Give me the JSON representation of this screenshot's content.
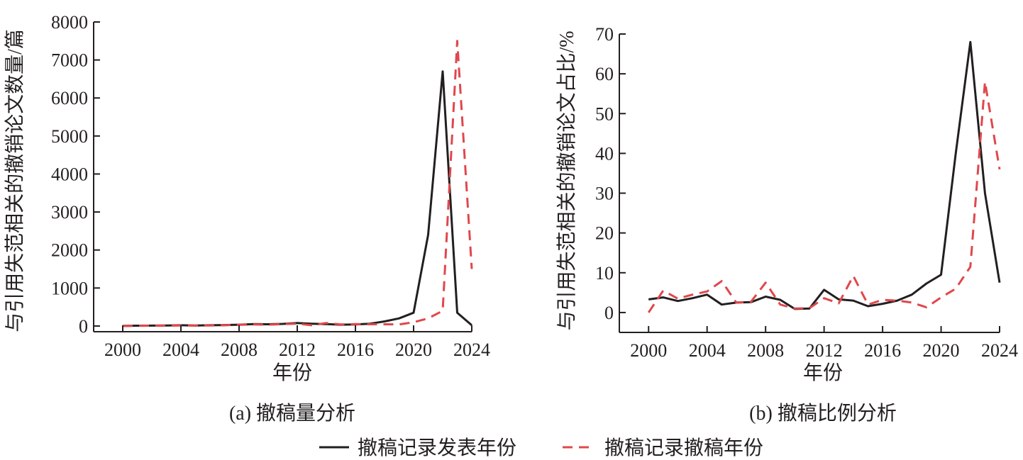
{
  "chart_data": [
    {
      "type": "line",
      "caption": "(a) 撤稿量分析",
      "xlabel": "年份",
      "ylabel": "与引用失范相关的撤销论文数量/篇",
      "xlim": [
        1998,
        2024
      ],
      "ylim": [
        -150,
        8000
      ],
      "xticks": [
        2000,
        2004,
        2008,
        2012,
        2016,
        2020,
        2024
      ],
      "yticks": [
        0,
        1000,
        2000,
        3000,
        4000,
        5000,
        6000,
        7000,
        8000
      ],
      "x": [
        2000,
        2001,
        2002,
        2003,
        2004,
        2005,
        2006,
        2007,
        2008,
        2009,
        2010,
        2011,
        2012,
        2013,
        2014,
        2015,
        2016,
        2017,
        2018,
        2019,
        2020,
        2021,
        2022,
        2023,
        2024
      ],
      "series": [
        {
          "name": "撤稿记录发表年份",
          "color": "#231f20",
          "dash": "solid",
          "x": [
            2000,
            2001,
            2002,
            2003,
            2004,
            2005,
            2006,
            2007,
            2008,
            2009,
            2010,
            2011,
            2012,
            2013,
            2014,
            2015,
            2016,
            2017,
            2018,
            2019,
            2020,
            2021,
            2022,
            2023,
            2024
          ],
          "values": [
            5,
            8,
            10,
            15,
            20,
            15,
            20,
            25,
            35,
            50,
            45,
            55,
            80,
            60,
            50,
            35,
            40,
            60,
            120,
            200,
            350,
            2400,
            6700,
            350,
            20
          ]
        },
        {
          "name": "撤稿记录撤稿年份",
          "color": "#e0474c",
          "dash": "dashed",
          "x": [
            2000,
            2001,
            2002,
            2003,
            2004,
            2005,
            2006,
            2007,
            2008,
            2009,
            2010,
            2011,
            2012,
            2013,
            2014,
            2015,
            2016,
            2017,
            2018,
            2019,
            2020,
            2021,
            2022,
            2023,
            2024
          ],
          "values": [
            0,
            5,
            10,
            10,
            15,
            10,
            15,
            20,
            30,
            40,
            35,
            50,
            60,
            20,
            80,
            40,
            50,
            45,
            45,
            40,
            100,
            200,
            400,
            7500,
            1500
          ]
        }
      ]
    },
    {
      "type": "line",
      "caption": "(b) 撤稿比例分析",
      "xlabel": "年份",
      "ylabel": "与引用失范相关的撤销论文占比/%",
      "xlim": [
        1998,
        2024
      ],
      "ylim": [
        -5,
        70
      ],
      "xticks": [
        2000,
        2004,
        2008,
        2012,
        2016,
        2020,
        2024
      ],
      "yticks": [
        0,
        10,
        20,
        30,
        40,
        50,
        60,
        70
      ],
      "series": [
        {
          "name": "撤稿记录发表年份",
          "color": "#231f20",
          "dash": "solid",
          "x": [
            2000,
            2001,
            2002,
            2003,
            2004,
            2005,
            2006,
            2007,
            2008,
            2009,
            2010,
            2011,
            2012,
            2013,
            2014,
            2015,
            2016,
            2017,
            2018,
            2019,
            2020,
            2021,
            2022,
            2023,
            2024
          ],
          "values": [
            3.3,
            3.8,
            2.9,
            3.6,
            4.5,
            2.0,
            2.5,
            2.6,
            4.0,
            3.2,
            0.9,
            1.0,
            5.7,
            3.3,
            3.0,
            1.6,
            2.2,
            3.0,
            4.5,
            7.3,
            9.5,
            40,
            68,
            30,
            7.5
          ]
        },
        {
          "name": "撤稿记录撤稿年份",
          "color": "#e0474c",
          "dash": "dashed",
          "x": [
            2000,
            2001,
            2002,
            2003,
            2004,
            2005,
            2006,
            2007,
            2008,
            2009,
            2010,
            2011,
            2012,
            2013,
            2014,
            2015,
            2016,
            2017,
            2018,
            2019,
            2020,
            2021,
            2022,
            2023,
            2024
          ],
          "values": [
            0,
            5.5,
            3.5,
            4.5,
            5.3,
            7.9,
            2.5,
            2.7,
            7.5,
            2.0,
            1.0,
            1.1,
            3.6,
            2.3,
            9.2,
            2.0,
            3.2,
            3.0,
            2.5,
            1.3,
            3.8,
            6.0,
            11.5,
            58,
            36
          ]
        }
      ]
    }
  ],
  "legend": {
    "items": [
      {
        "label": "撤稿记录发表年份",
        "color": "#231f20",
        "dash": "solid"
      },
      {
        "label": "撤稿记录撤稿年份",
        "color": "#e0474c",
        "dash": "dashed"
      }
    ]
  }
}
